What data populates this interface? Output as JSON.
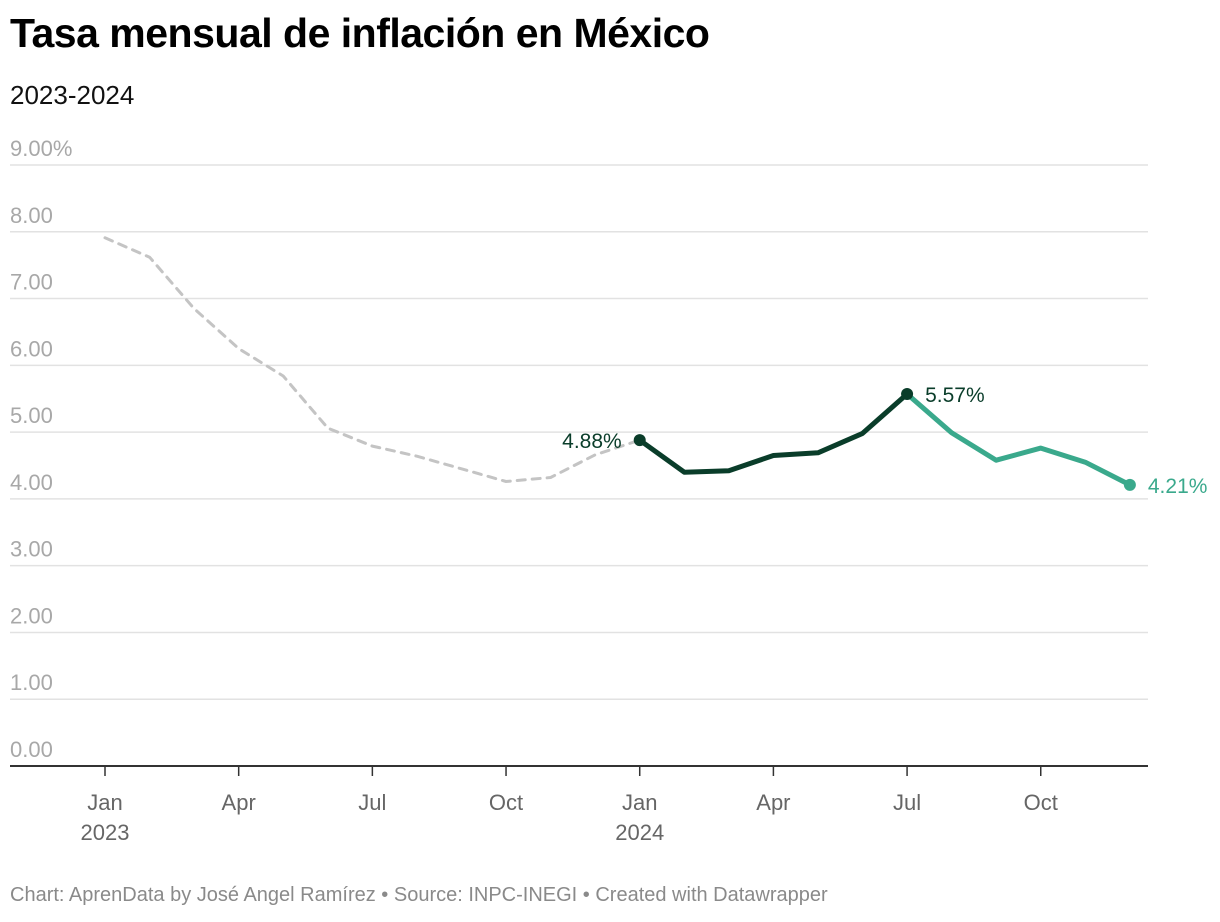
{
  "title": "Tasa mensual de inflación en México",
  "subtitle": "2023-2024",
  "footer": "Chart: AprenData by José Angel Ramírez • Source: INPC-INEGI • Created with Datawrapper",
  "colors": {
    "past": "#c4c4c4",
    "dark": "#0a3d2a",
    "light": "#3aa98c",
    "grid": "#e2e2e2",
    "axis": "#333333"
  },
  "chart_data": {
    "type": "line",
    "title": "Tasa mensual de inflación en México",
    "subtitle": "2023-2024",
    "ylim": [
      0,
      9
    ],
    "yticks": [
      "9.00%",
      "8.00",
      "7.00",
      "6.00",
      "5.00",
      "4.00",
      "3.00",
      "2.00",
      "1.00",
      "0.00"
    ],
    "xticks": [
      {
        "label": "Jan",
        "sub": "2023",
        "month": 0
      },
      {
        "label": "Apr",
        "sub": "",
        "month": 3
      },
      {
        "label": "Jul",
        "sub": "",
        "month": 6
      },
      {
        "label": "Oct",
        "sub": "",
        "month": 9
      },
      {
        "label": "Jan",
        "sub": "2024",
        "month": 12
      },
      {
        "label": "Apr",
        "sub": "",
        "month": 15
      },
      {
        "label": "Jul",
        "sub": "",
        "month": 18
      },
      {
        "label": "Oct",
        "sub": "",
        "month": 21
      }
    ],
    "grid": true,
    "series": [
      {
        "style": "dashed-gray",
        "x": [
          "2023-01",
          "2023-02",
          "2023-03",
          "2023-04",
          "2023-05",
          "2023-06",
          "2023-07",
          "2023-08",
          "2023-09",
          "2023-10",
          "2023-11",
          "2023-12",
          "2024-01"
        ],
        "values": [
          7.91,
          7.62,
          6.85,
          6.25,
          5.84,
          5.06,
          4.79,
          4.64,
          4.45,
          4.26,
          4.32,
          4.66,
          4.88
        ]
      },
      {
        "style": "solid-dark",
        "x": [
          "2024-01",
          "2024-02",
          "2024-03",
          "2024-04",
          "2024-05",
          "2024-06",
          "2024-07"
        ],
        "values": [
          4.88,
          4.4,
          4.42,
          4.65,
          4.69,
          4.98,
          5.57
        ]
      },
      {
        "style": "solid-light",
        "x": [
          "2024-07",
          "2024-08",
          "2024-09",
          "2024-10",
          "2024-11",
          "2024-12"
        ],
        "values": [
          5.57,
          4.99,
          4.58,
          4.76,
          4.55,
          4.21
        ]
      }
    ],
    "annotations": [
      {
        "x": "2024-01",
        "value": 4.88,
        "label": "4.88%",
        "side": "left",
        "color": "dark"
      },
      {
        "x": "2024-07",
        "value": 5.57,
        "label": "5.57%",
        "side": "right",
        "color": "dark"
      },
      {
        "x": "2024-12",
        "value": 4.21,
        "label": "4.21%",
        "side": "right",
        "color": "light"
      }
    ]
  }
}
